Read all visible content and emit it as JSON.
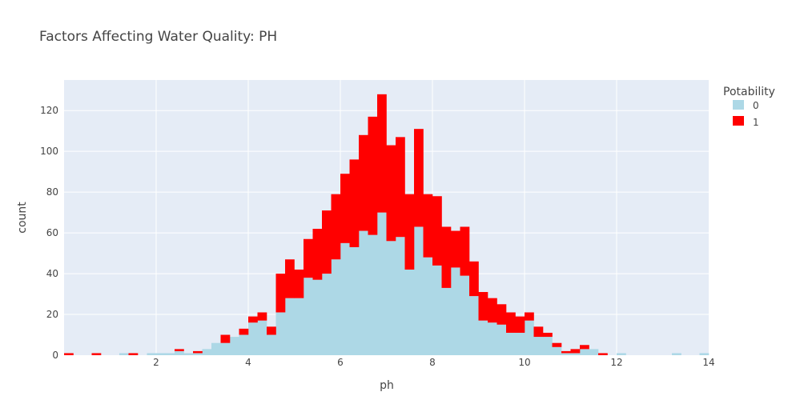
{
  "chart_data": {
    "type": "bar",
    "barmode": "stack",
    "title": "Factors Affecting Water Quality: PH",
    "xlabel": "ph",
    "ylabel": "count",
    "xlim": [
      0,
      14
    ],
    "ylim": [
      0,
      135
    ],
    "bin_width": 0.2,
    "x_ticks": [
      2,
      4,
      6,
      8,
      10,
      12,
      14
    ],
    "y_ticks": [
      0,
      20,
      40,
      60,
      80,
      100,
      120
    ],
    "grid": true,
    "legend_title": "Potability",
    "legend_position": "top-right",
    "x": [
      0.1,
      0.3,
      0.5,
      0.7,
      0.9,
      1.1,
      1.3,
      1.5,
      1.7,
      1.9,
      2.1,
      2.3,
      2.5,
      2.7,
      2.9,
      3.1,
      3.3,
      3.5,
      3.7,
      3.9,
      4.1,
      4.3,
      4.5,
      4.7,
      4.9,
      5.1,
      5.3,
      5.5,
      5.7,
      5.9,
      6.1,
      6.3,
      6.5,
      6.7,
      6.9,
      7.1,
      7.3,
      7.5,
      7.7,
      7.9,
      8.1,
      8.3,
      8.5,
      8.7,
      8.9,
      9.1,
      9.3,
      9.5,
      9.7,
      9.9,
      10.1,
      10.3,
      10.5,
      10.7,
      10.9,
      11.1,
      11.3,
      11.5,
      11.7,
      11.9,
      12.1,
      12.3,
      12.5,
      12.7,
      12.9,
      13.1,
      13.3,
      13.5,
      13.7,
      13.9
    ],
    "series": [
      {
        "name": "0",
        "color": "#ADD8E6",
        "values": [
          0,
          0,
          0,
          0,
          0,
          0,
          1,
          0,
          0,
          1,
          1,
          1,
          2,
          1,
          1,
          3,
          6,
          6,
          9,
          10,
          16,
          17,
          10,
          21,
          28,
          28,
          38,
          37,
          40,
          47,
          55,
          53,
          61,
          59,
          70,
          56,
          58,
          42,
          63,
          48,
          44,
          33,
          43,
          39,
          29,
          17,
          16,
          15,
          11,
          11,
          17,
          9,
          9,
          4,
          1,
          1,
          3,
          3,
          0,
          0,
          1,
          0,
          0,
          0,
          0,
          0,
          1,
          0,
          0,
          1
        ]
      },
      {
        "name": "1",
        "color": "#FF0000",
        "values": [
          1,
          0,
          0,
          1,
          0,
          0,
          0,
          1,
          0,
          0,
          0,
          0,
          1,
          0,
          1,
          0,
          0,
          4,
          0,
          3,
          3,
          4,
          4,
          19,
          19,
          14,
          19,
          25,
          31,
          32,
          34,
          43,
          47,
          58,
          58,
          47,
          49,
          37,
          48,
          31,
          34,
          30,
          18,
          24,
          17,
          14,
          12,
          10,
          10,
          8,
          4,
          5,
          2,
          2,
          1,
          2,
          2,
          0,
          1,
          0,
          0,
          0,
          0,
          0,
          0,
          0,
          0,
          0,
          0,
          0
        ]
      }
    ]
  }
}
